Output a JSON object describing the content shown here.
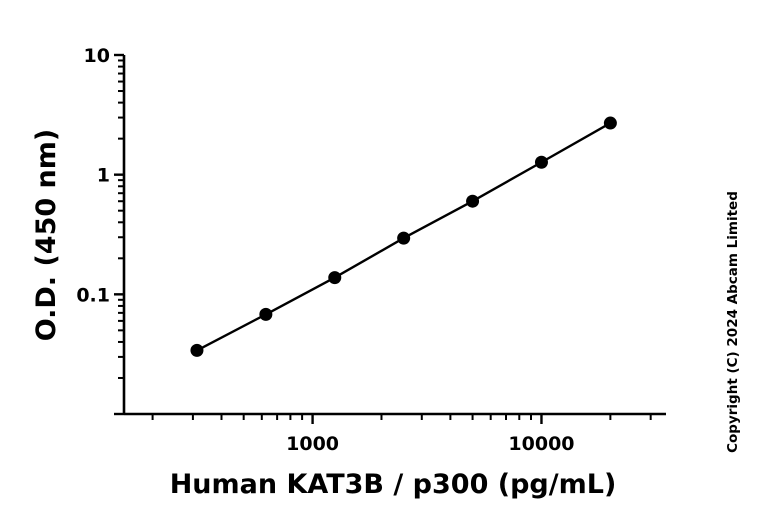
{
  "chart_data": {
    "type": "scatter",
    "title": "",
    "xlabel": "Human KAT3B / p300 (pg/mL)",
    "ylabel": "O.D. (450 nm)",
    "x_scale": "log",
    "y_scale": "log",
    "xlim": [
      150,
      35000
    ],
    "ylim": [
      0.01,
      10
    ],
    "x_ticks": [
      {
        "value": 1000,
        "label": "1000"
      },
      {
        "value": 10000,
        "label": "10000"
      }
    ],
    "y_ticks": [
      {
        "value": 10,
        "label": "10"
      },
      {
        "value": 1,
        "label": "1"
      },
      {
        "value": 0.1,
        "label": "0.1"
      }
    ],
    "grid": false,
    "legend": false,
    "series": [
      {
        "marker_color": "#000000",
        "line_color": "#000000",
        "fit_line": true,
        "points": [
          {
            "x": 312.5,
            "y": 0.034
          },
          {
            "x": 625,
            "y": 0.068
          },
          {
            "x": 1250,
            "y": 0.138
          },
          {
            "x": 2500,
            "y": 0.295
          },
          {
            "x": 5000,
            "y": 0.6
          },
          {
            "x": 10000,
            "y": 1.27
          },
          {
            "x": 20000,
            "y": 2.7
          }
        ]
      }
    ],
    "annotations": [
      "Copyright (C) 2024 Abcam Limited"
    ]
  }
}
